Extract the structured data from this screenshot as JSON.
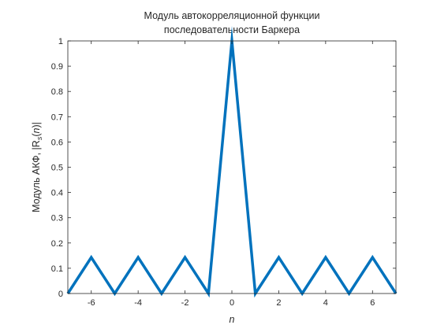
{
  "chart_data": {
    "type": "line",
    "title": [
      "Модуль автокорреляционной функции",
      "последовательности Баркера"
    ],
    "xlabel": "n",
    "ylabel": {
      "prefix": "Модуль АКФ, |R",
      "subscript": "s",
      "middle": "(",
      "arg": "n",
      "suffix": ")|"
    },
    "xlim": [
      -7,
      7
    ],
    "ylim": [
      0,
      1
    ],
    "xticks": [
      -6,
      -4,
      -2,
      0,
      2,
      4,
      6
    ],
    "yticks": [
      0,
      0.1,
      0.2,
      0.3,
      0.4,
      0.5,
      0.6,
      0.7,
      0.8,
      0.9,
      1
    ],
    "grid": false,
    "series": [
      {
        "color": "#0072BD",
        "x": [
          -7,
          -6,
          -5,
          -4,
          -3,
          -2,
          -1,
          0,
          1,
          2,
          3,
          4,
          5,
          6,
          7
        ],
        "y": [
          0,
          0.1429,
          0,
          0.1429,
          0,
          0.1429,
          0,
          1,
          0,
          0.1429,
          0,
          0.1429,
          0,
          0.1429,
          0
        ]
      }
    ]
  }
}
